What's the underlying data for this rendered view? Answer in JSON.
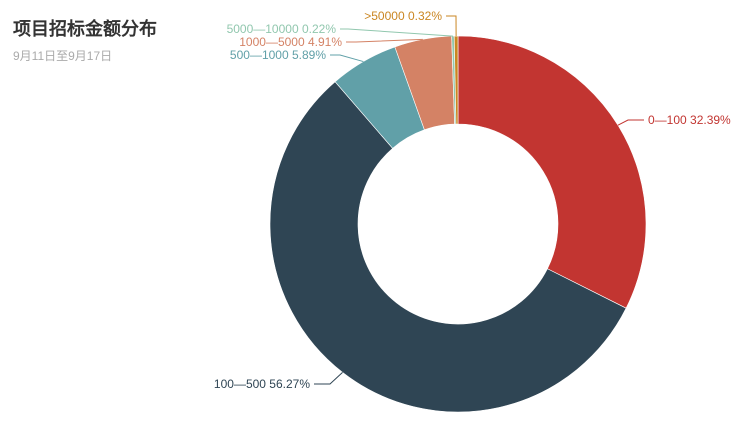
{
  "chart_data": {
    "type": "pie",
    "variant": "donut",
    "title": "项目招标金额分布",
    "subtitle": "9月11日至9月17日",
    "legend": "none",
    "slices": [
      {
        "name": "0—100",
        "value": 32.39,
        "label": "0—100 32.39%",
        "color": "#c23531"
      },
      {
        "name": "100—500",
        "value": 56.27,
        "label": "100—500 56.27%",
        "color": "#2f4554"
      },
      {
        "name": "500—1000",
        "value": 5.89,
        "label": "500—1000 5.89%",
        "color": "#61a0a8"
      },
      {
        "name": "1000—5000",
        "value": 4.91,
        "label": "1000—5000 4.91%",
        "color": "#d48265"
      },
      {
        "name": "5000—10000",
        "value": 0.22,
        "label": "5000—10000 0.22%",
        "color": "#91c7ae"
      },
      {
        "name": ">50000",
        "value": 0.32,
        "label": ">50000 0.32%",
        "color": "#ca8622"
      }
    ]
  }
}
